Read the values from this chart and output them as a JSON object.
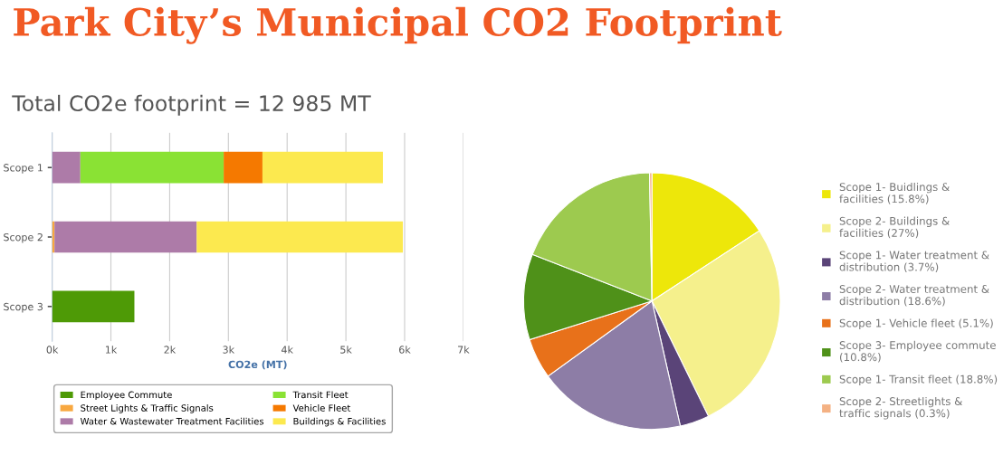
{
  "chart_data": [
    {
      "type": "bar",
      "title": "Park City’s Municipal CO2 Footprint",
      "subtitle": "Total CO2e footprint = 12 985 MT",
      "orientation": "horizontal",
      "stacked": true,
      "categories": [
        "Scope 1",
        "Scope 2",
        "Scope 3"
      ],
      "series": [
        {
          "name": "Employee Commute",
          "color": "#4e9a06",
          "values": [
            null,
            null,
            1400
          ]
        },
        {
          "name": "Street Lights & Traffic Signals",
          "color": "#f8a840",
          "values": [
            null,
            40,
            null
          ]
        },
        {
          "name": "Water & Wastewater Treatment Facilities",
          "color": "#ad7ba8",
          "values": [
            480,
            2420,
            null
          ]
        },
        {
          "name": "Transit Fleet",
          "color": "#8ae234",
          "values": [
            2440,
            null,
            null
          ]
        },
        {
          "name": "Vehicle Fleet",
          "color": "#f57900",
          "values": [
            660,
            null,
            null
          ]
        },
        {
          "name": "Buildings & Facilities",
          "color": "#fce94f",
          "values": [
            2050,
            3510,
            null
          ]
        }
      ],
      "xlabel": "CO2e (MT)",
      "xlim": [
        0,
        7000
      ],
      "xticks": [
        {
          "value": 0,
          "label": "0k"
        },
        {
          "value": 1000,
          "label": "1k"
        },
        {
          "value": 2000,
          "label": "2k"
        },
        {
          "value": 3000,
          "label": "3k"
        },
        {
          "value": 4000,
          "label": "4k"
        },
        {
          "value": 5000,
          "label": "5k"
        },
        {
          "value": 6000,
          "label": "6k"
        },
        {
          "value": 7000,
          "label": "7k"
        }
      ],
      "grid": "x",
      "legend": "bottom"
    },
    {
      "type": "pie",
      "categories": [
        "Scope 1- Buidlings & facilities (15.8%)",
        "Scope 2- Buildings & facilities (27%)",
        "Scope 1- Water treatment & distribution (3.7%)",
        "Scope 2- Water treatment & distribution (18.6%)",
        "Scope 1- Vehicle fleet (5.1%)",
        "Scope 3- Employee commute (10.8%)",
        "Scope 1- Transit fleet (18.8%)",
        "Scope 2- Streetlights & traffic signals (0.3%)"
      ],
      "values": [
        15.8,
        27,
        3.7,
        18.6,
        5.1,
        10.8,
        18.8,
        0.3
      ],
      "colors": [
        "#ede70a",
        "#f5f08c",
        "#5a4478",
        "#8d7da6",
        "#e8711a",
        "#4f9119",
        "#9dca4f",
        "#f4b183"
      ],
      "legend": "right"
    }
  ]
}
